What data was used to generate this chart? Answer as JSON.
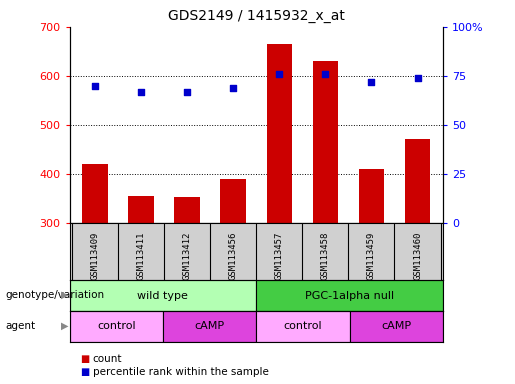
{
  "title": "GDS2149 / 1415932_x_at",
  "samples": [
    "GSM113409",
    "GSM113411",
    "GSM113412",
    "GSM113456",
    "GSM113457",
    "GSM113458",
    "GSM113459",
    "GSM113460"
  ],
  "counts": [
    420,
    355,
    352,
    390,
    665,
    630,
    410,
    470
  ],
  "percentiles": [
    70,
    67,
    67,
    69,
    76,
    76,
    72,
    74
  ],
  "ylim_left": [
    300,
    700
  ],
  "ylim_right": [
    0,
    100
  ],
  "yticks_left": [
    300,
    400,
    500,
    600,
    700
  ],
  "yticks_right": [
    0,
    25,
    50,
    75,
    100
  ],
  "bar_color": "#cc0000",
  "dot_color": "#0000cc",
  "grid_color": "#000000",
  "genotype_groups": [
    {
      "label": "wild type",
      "start": 0,
      "end": 4,
      "color": "#b3ffb3"
    },
    {
      "label": "PGC-1alpha null",
      "start": 4,
      "end": 8,
      "color": "#44cc44"
    }
  ],
  "agent_groups": [
    {
      "label": "control",
      "start": 0,
      "end": 2,
      "color": "#ffaaff"
    },
    {
      "label": "cAMP",
      "start": 2,
      "end": 4,
      "color": "#dd44dd"
    },
    {
      "label": "control",
      "start": 4,
      "end": 6,
      "color": "#ffaaff"
    },
    {
      "label": "cAMP",
      "start": 6,
      "end": 8,
      "color": "#dd44dd"
    }
  ],
  "legend_count_label": "count",
  "legend_pct_label": "percentile rank within the sample",
  "row_label_genotype": "genotype/variation",
  "row_label_agent": "agent",
  "background_color": "#ffffff",
  "panel_bg": "#d0d0d0"
}
